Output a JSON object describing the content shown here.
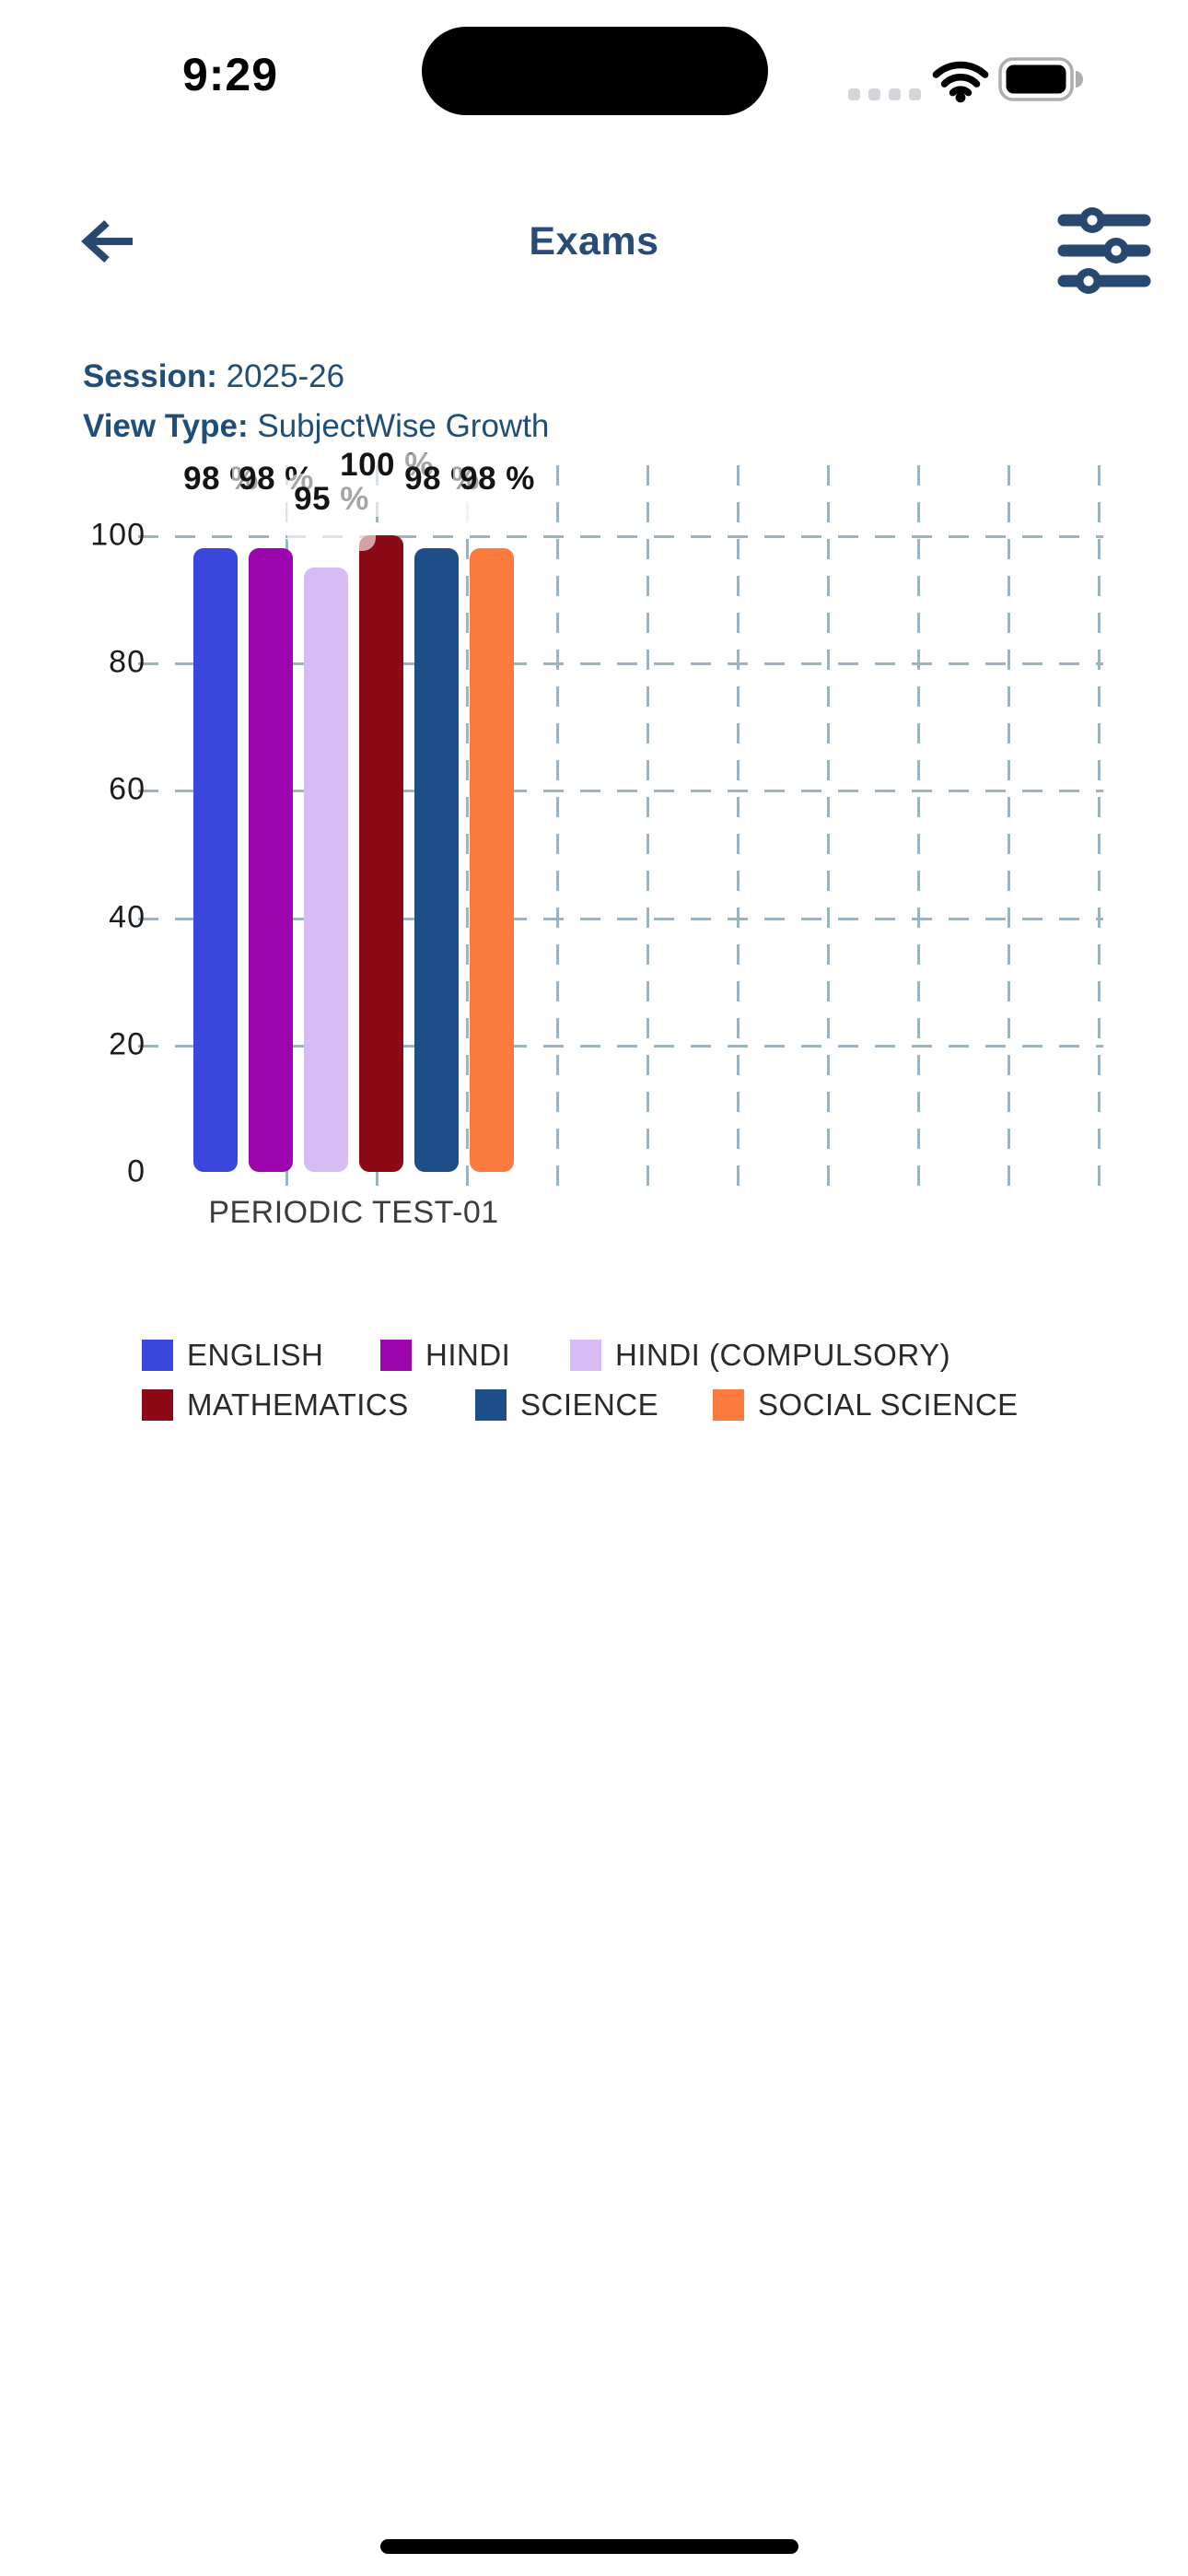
{
  "status_bar": {
    "time": "9:29",
    "cellular_icon": "cellular-signal-dots",
    "wifi_icon": "wifi-full",
    "battery_icon": "battery-full"
  },
  "header": {
    "title": "Exams",
    "back_icon": "back-arrow",
    "filter_icon": "filter-sliders"
  },
  "meta": {
    "session_label": "Session:",
    "session_value": "2025-26",
    "view_type_label": "View Type:",
    "view_type_value": "SubjectWise Growth"
  },
  "chart_data": {
    "type": "bar",
    "title": "",
    "categories": [
      "PERIODIC TEST-01"
    ],
    "series": [
      {
        "name": "ENGLISH",
        "values": [
          98
        ],
        "label": "98 %",
        "color": "#3b46dd"
      },
      {
        "name": "HINDI",
        "values": [
          98
        ],
        "label": "98 %",
        "color": "#9c04ae"
      },
      {
        "name": "HINDI (COMPULSORY)",
        "values": [
          95
        ],
        "label": "95 %",
        "color": "#d7bbf4"
      },
      {
        "name": "MATHEMATICS",
        "values": [
          100
        ],
        "label": "100 %",
        "color": "#8c0a16"
      },
      {
        "name": "SCIENCE",
        "values": [
          98
        ],
        "label": "98 %",
        "color": "#1e4e87"
      },
      {
        "name": "SOCIAL SCIENCE",
        "values": [
          98
        ],
        "label": "98 %",
        "color": "#fb7a3d"
      }
    ],
    "ylim": [
      0,
      100
    ],
    "yticks": [
      0,
      20,
      40,
      60,
      80,
      100
    ],
    "grid": "dashed-both-axes",
    "legend_position": "bottom"
  },
  "colors": {
    "accent_navy": "#27496f",
    "text_navy": "#1f4e79",
    "grid": "#9db4c0"
  }
}
